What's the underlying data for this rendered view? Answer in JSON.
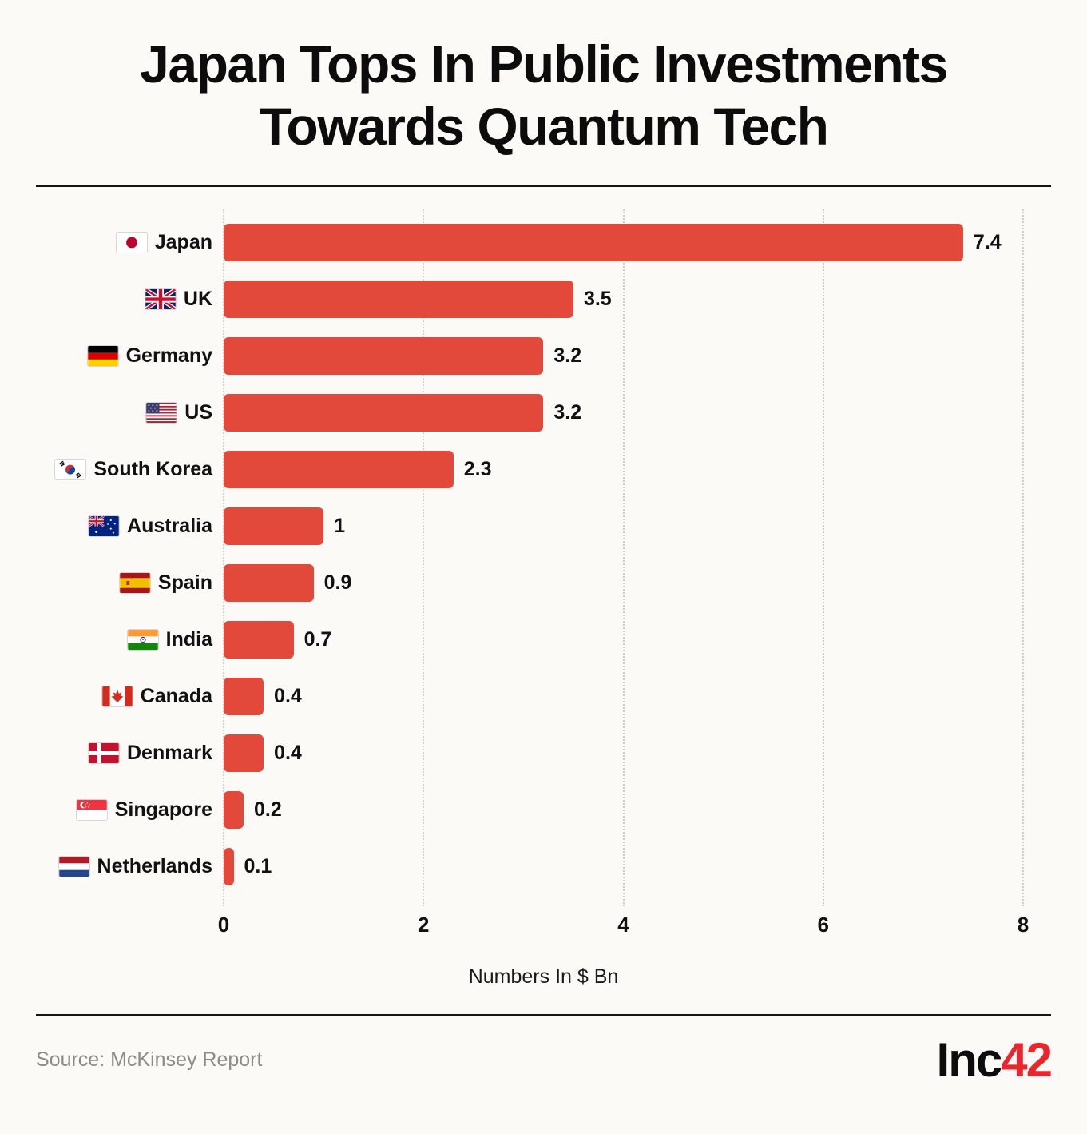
{
  "header": {
    "title_line1": "Japan Tops In Public Investments",
    "title_line2": "Towards Quantum Tech"
  },
  "chart_data": {
    "type": "bar",
    "orientation": "horizontal",
    "title": "Japan Tops In Public Investments Towards Quantum Tech",
    "categories": [
      "Japan",
      "UK",
      "Germany",
      "US",
      "South Korea",
      "Australia",
      "Spain",
      "India",
      "Canada",
      "Denmark",
      "Singapore",
      "Netherlands"
    ],
    "values": [
      7.4,
      3.5,
      3.2,
      3.2,
      2.3,
      1,
      0.9,
      0.7,
      0.4,
      0.4,
      0.2,
      0.1
    ],
    "value_labels": [
      "7.4",
      "3.5",
      "3.2",
      "3.2",
      "2.3",
      "1",
      "0.9",
      "0.7",
      "0.4",
      "0.4",
      "0.2",
      "0.1"
    ],
    "flag_icons": [
      "japan-flag-icon",
      "uk-flag-icon",
      "germany-flag-icon",
      "us-flag-icon",
      "south-korea-flag-icon",
      "australia-flag-icon",
      "spain-flag-icon",
      "india-flag-icon",
      "canada-flag-icon",
      "denmark-flag-icon",
      "singapore-flag-icon",
      "netherlands-flag-icon"
    ],
    "xlabel": "Numbers In $ Bn",
    "x_ticks": [
      0,
      2,
      4,
      6,
      8
    ],
    "xlim": [
      0,
      8
    ],
    "bar_color": "#e2493b",
    "grid": "vertical-dotted",
    "legend": "none"
  },
  "footer": {
    "source": "Source: McKinsey Report",
    "logo_text": "Inc",
    "logo_number": "42"
  }
}
